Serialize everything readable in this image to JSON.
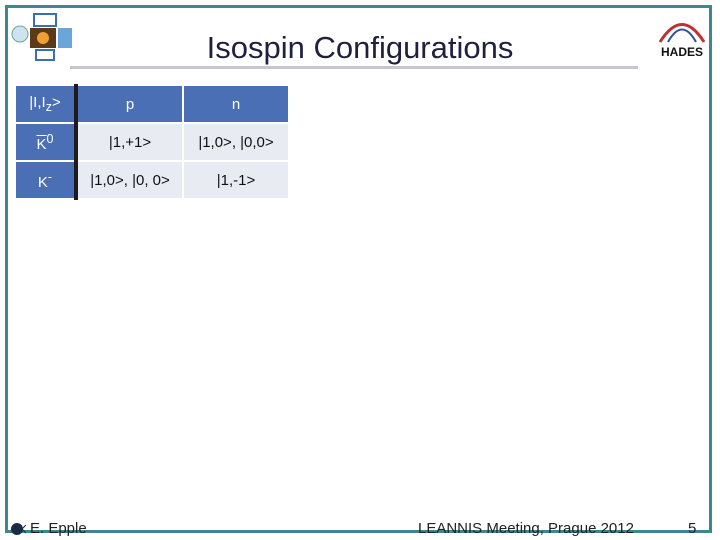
{
  "header": {
    "title": "Isospin Configurations",
    "logo_right": "HADES"
  },
  "table": {
    "corner": {
      "main": "|I,I",
      "sub": "z",
      "end": ">"
    },
    "columns": [
      "p",
      "n"
    ],
    "rows": [
      {
        "label": {
          "main": "K",
          "sup": "0"
        },
        "cells": [
          "|1,+1>",
          "|1,0>, |0,0>"
        ]
      },
      {
        "label": {
          "main": "K",
          "sup": "-"
        },
        "cells": [
          "|1,0>, |0, 0>",
          "|1,-1>"
        ]
      }
    ]
  },
  "footer": {
    "author": "E. Epple",
    "event": "LEANNIS Meeting, Prague 2012",
    "page": "5"
  }
}
